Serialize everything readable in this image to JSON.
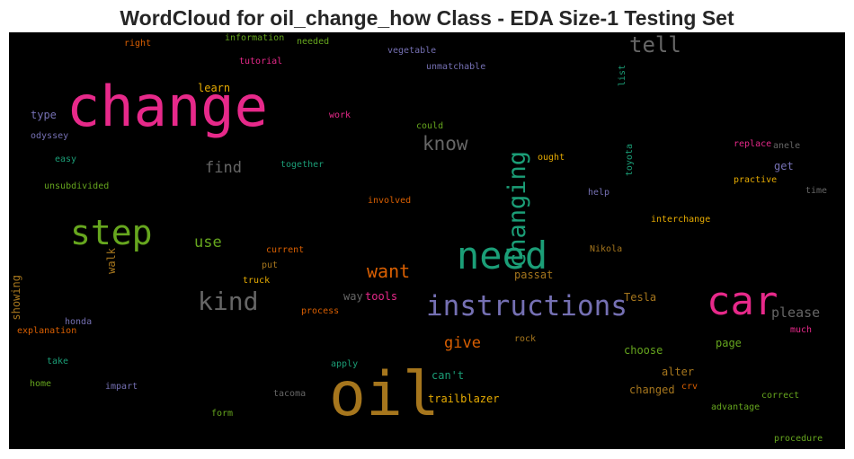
{
  "chart_data": {
    "type": "wordcloud",
    "title": "WordCloud for oil_change_how Class - EDA Size-1 Testing Set",
    "background": "#000000",
    "words": [
      {
        "text": "change",
        "color": "#e7298a",
        "orientation": "horizontal"
      },
      {
        "text": "oil",
        "color": "#a6761d",
        "orientation": "horizontal"
      },
      {
        "text": "car",
        "color": "#e7298a",
        "orientation": "horizontal"
      },
      {
        "text": "need",
        "color": "#1b9e77",
        "orientation": "horizontal"
      },
      {
        "text": "step",
        "color": "#66a61e",
        "orientation": "horizontal"
      },
      {
        "text": "instructions",
        "color": "#7570b3",
        "orientation": "horizontal"
      },
      {
        "text": "changing",
        "color": "#1b9e77",
        "orientation": "vertical"
      },
      {
        "text": "kind",
        "color": "#666666",
        "orientation": "horizontal"
      },
      {
        "text": "tell",
        "color": "#666666",
        "orientation": "horizontal"
      },
      {
        "text": "know",
        "color": "#666666",
        "orientation": "horizontal"
      },
      {
        "text": "want",
        "color": "#d95f02",
        "orientation": "horizontal"
      },
      {
        "text": "find",
        "color": "#666666",
        "orientation": "horizontal"
      },
      {
        "text": "use",
        "color": "#66a61e",
        "orientation": "horizontal"
      },
      {
        "text": "give",
        "color": "#d95f02",
        "orientation": "horizontal"
      },
      {
        "text": "please",
        "color": "#666666",
        "orientation": "horizontal"
      },
      {
        "text": "trailblazer",
        "color": "#e6ab02",
        "orientation": "horizontal"
      },
      {
        "text": "alter",
        "color": "#a6761d",
        "orientation": "horizontal"
      },
      {
        "text": "changed",
        "color": "#a6761d",
        "orientation": "horizontal"
      },
      {
        "text": "choose",
        "color": "#66a61e",
        "orientation": "horizontal"
      },
      {
        "text": "page",
        "color": "#66a61e",
        "orientation": "horizontal"
      },
      {
        "text": "Tesla",
        "color": "#a6761d",
        "orientation": "horizontal"
      },
      {
        "text": "passat",
        "color": "#a6761d",
        "orientation": "horizontal"
      },
      {
        "text": "can't",
        "color": "#1b9e77",
        "orientation": "horizontal"
      },
      {
        "text": "tools",
        "color": "#e7298a",
        "orientation": "horizontal"
      },
      {
        "text": "way",
        "color": "#666666",
        "orientation": "horizontal"
      },
      {
        "text": "learn",
        "color": "#e6ab02",
        "orientation": "horizontal"
      },
      {
        "text": "type",
        "color": "#7570b3",
        "orientation": "horizontal"
      },
      {
        "text": "get",
        "color": "#7570b3",
        "orientation": "horizontal"
      },
      {
        "text": "walk",
        "color": "#a6761d",
        "orientation": "vertical"
      },
      {
        "text": "showing",
        "color": "#a6761d",
        "orientation": "vertical"
      },
      {
        "text": "right",
        "color": "#d95f02",
        "orientation": "horizontal"
      },
      {
        "text": "information",
        "color": "#66a61e",
        "orientation": "horizontal"
      },
      {
        "text": "needed",
        "color": "#66a61e",
        "orientation": "horizontal"
      },
      {
        "text": "vegetable",
        "color": "#7570b3",
        "orientation": "horizontal"
      },
      {
        "text": "tutorial",
        "color": "#e7298a",
        "orientation": "horizontal"
      },
      {
        "text": "unmatchable",
        "color": "#7570b3",
        "orientation": "horizontal"
      },
      {
        "text": "list",
        "color": "#1b9e77",
        "orientation": "vertical"
      },
      {
        "text": "work",
        "color": "#e7298a",
        "orientation": "horizontal"
      },
      {
        "text": "could",
        "color": "#66a61e",
        "orientation": "horizontal"
      },
      {
        "text": "odyssey",
        "color": "#7570b3",
        "orientation": "horizontal"
      },
      {
        "text": "easy",
        "color": "#1b9e77",
        "orientation": "horizontal"
      },
      {
        "text": "together",
        "color": "#1b9e77",
        "orientation": "horizontal"
      },
      {
        "text": "ought",
        "color": "#e6ab02",
        "orientation": "horizontal"
      },
      {
        "text": "toyota",
        "color": "#1b9e77",
        "orientation": "vertical"
      },
      {
        "text": "replace",
        "color": "#e7298a",
        "orientation": "horizontal"
      },
      {
        "text": "anele",
        "color": "#666666",
        "orientation": "horizontal"
      },
      {
        "text": "practive",
        "color": "#e6ab02",
        "orientation": "horizontal"
      },
      {
        "text": "time",
        "color": "#666666",
        "orientation": "horizontal"
      },
      {
        "text": "unsubdivided",
        "color": "#66a61e",
        "orientation": "horizontal"
      },
      {
        "text": "help",
        "color": "#7570b3",
        "orientation": "horizontal"
      },
      {
        "text": "involved",
        "color": "#d95f02",
        "orientation": "horizontal"
      },
      {
        "text": "interchange",
        "color": "#e6ab02",
        "orientation": "horizontal"
      },
      {
        "text": "current",
        "color": "#d95f02",
        "orientation": "horizontal"
      },
      {
        "text": "Nikola",
        "color": "#a6761d",
        "orientation": "horizontal"
      },
      {
        "text": "put",
        "color": "#a6761d",
        "orientation": "horizontal"
      },
      {
        "text": "truck",
        "color": "#e6ab02",
        "orientation": "horizontal"
      },
      {
        "text": "process",
        "color": "#d95f02",
        "orientation": "horizontal"
      },
      {
        "text": "honda",
        "color": "#7570b3",
        "orientation": "horizontal"
      },
      {
        "text": "explanation",
        "color": "#d95f02",
        "orientation": "horizontal"
      },
      {
        "text": "rock",
        "color": "#a6761d",
        "orientation": "horizontal"
      },
      {
        "text": "much",
        "color": "#e7298a",
        "orientation": "horizontal"
      },
      {
        "text": "take",
        "color": "#1b9e77",
        "orientation": "horizontal"
      },
      {
        "text": "apply",
        "color": "#1b9e77",
        "orientation": "horizontal"
      },
      {
        "text": "home",
        "color": "#66a61e",
        "orientation": "horizontal"
      },
      {
        "text": "impart",
        "color": "#7570b3",
        "orientation": "horizontal"
      },
      {
        "text": "tacoma",
        "color": "#666666",
        "orientation": "horizontal"
      },
      {
        "text": "crv",
        "color": "#d95f02",
        "orientation": "horizontal"
      },
      {
        "text": "correct",
        "color": "#66a61e",
        "orientation": "horizontal"
      },
      {
        "text": "form",
        "color": "#66a61e",
        "orientation": "horizontal"
      },
      {
        "text": "advantage",
        "color": "#66a61e",
        "orientation": "horizontal"
      },
      {
        "text": "procedure",
        "color": "#66a61e",
        "orientation": "horizontal"
      }
    ]
  }
}
